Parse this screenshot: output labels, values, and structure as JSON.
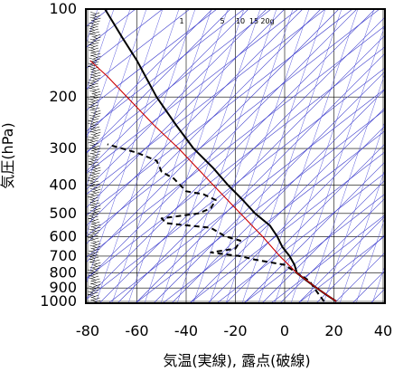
{
  "chart_data": {
    "type": "line",
    "chart_kind": "skew-T log-P aerological diagram",
    "xlabel": "気温(実線), 露点(破線)",
    "ylabel": "気圧(hPa)",
    "y_scale": "log",
    "y_inverted": true,
    "xlim": [
      -80,
      40
    ],
    "ylim": [
      1000,
      100
    ],
    "x_ticks": [
      -80,
      -60,
      -40,
      -20,
      0,
      20,
      40
    ],
    "y_ticks": [
      100,
      200,
      300,
      400,
      500,
      600,
      700,
      800,
      900,
      1000
    ],
    "mixing_ratio_labels": [
      "1",
      "5",
      "10",
      "15",
      "20g"
    ],
    "grid": true,
    "series": [
      {
        "style": "solid",
        "color": "#000000",
        "points": [
          {
            "p": 1000,
            "t": 21
          },
          {
            "p": 950,
            "t": 17
          },
          {
            "p": 900,
            "t": 13
          },
          {
            "p": 850,
            "t": 9
          },
          {
            "p": 800,
            "t": 5
          },
          {
            "p": 750,
            "t": 4
          },
          {
            "p": 700,
            "t": 2
          },
          {
            "p": 650,
            "t": -1
          },
          {
            "p": 600,
            "t": -3
          },
          {
            "p": 550,
            "t": -6
          },
          {
            "p": 500,
            "t": -12
          },
          {
            "p": 450,
            "t": -17
          },
          {
            "p": 400,
            "t": -23
          },
          {
            "p": 350,
            "t": -29
          },
          {
            "p": 300,
            "t": -37
          },
          {
            "p": 250,
            "t": -44
          },
          {
            "p": 200,
            "t": -52
          },
          {
            "p": 150,
            "t": -60
          },
          {
            "p": 125,
            "t": -66
          },
          {
            "p": 110,
            "t": -70
          },
          {
            "p": 100,
            "t": -73
          }
        ]
      },
      {
        "style": "dashed",
        "color": "#000000",
        "points": [
          {
            "p": 1000,
            "t": 16
          },
          {
            "p": 950,
            "t": 14
          },
          {
            "p": 900,
            "t": 12
          },
          {
            "p": 850,
            "t": 10
          },
          {
            "p": 800,
            "t": 5
          },
          {
            "p": 750,
            "t": 0
          },
          {
            "p": 720,
            "t": -12
          },
          {
            "p": 700,
            "t": -18
          },
          {
            "p": 680,
            "t": -30
          },
          {
            "p": 660,
            "t": -20
          },
          {
            "p": 620,
            "t": -18
          },
          {
            "p": 600,
            "t": -24
          },
          {
            "p": 560,
            "t": -30
          },
          {
            "p": 540,
            "t": -48
          },
          {
            "p": 520,
            "t": -50
          },
          {
            "p": 500,
            "t": -35
          },
          {
            "p": 480,
            "t": -30
          },
          {
            "p": 450,
            "t": -28
          },
          {
            "p": 430,
            "t": -33
          },
          {
            "p": 420,
            "t": -40
          },
          {
            "p": 380,
            "t": -45
          },
          {
            "p": 360,
            "t": -50
          },
          {
            "p": 330,
            "t": -52
          },
          {
            "p": 310,
            "t": -60
          },
          {
            "p": 300,
            "t": -66
          },
          {
            "p": 290,
            "t": -72
          }
        ]
      },
      {
        "style": "solid",
        "color": "#cc0000",
        "points": [
          {
            "p": 1000,
            "t": 21
          },
          {
            "p": 900,
            "t": 13
          },
          {
            "p": 800,
            "t": 5
          },
          {
            "p": 700,
            "t": -2
          },
          {
            "p": 600,
            "t": -9
          },
          {
            "p": 500,
            "t": -18
          },
          {
            "p": 400,
            "t": -29
          },
          {
            "p": 300,
            "t": -43
          },
          {
            "p": 250,
            "t": -53
          },
          {
            "p": 200,
            "t": -64
          },
          {
            "p": 170,
            "t": -72
          },
          {
            "p": 150,
            "t": -79
          }
        ]
      }
    ]
  }
}
